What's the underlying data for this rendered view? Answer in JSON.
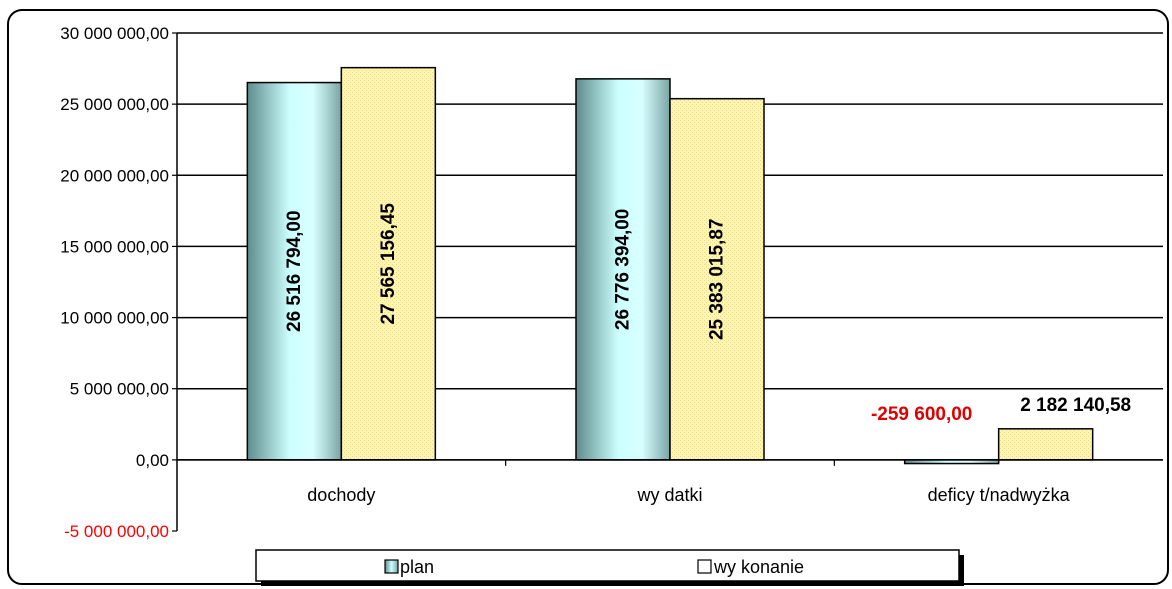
{
  "chart_data": {
    "type": "bar",
    "categories": [
      "dochody",
      "wy datki",
      "deficy t/nadwyżka"
    ],
    "series": [
      {
        "name": "plan",
        "values": [
          26516794.0,
          26776394.0,
          -259600.0
        ],
        "labels": [
          "26 516 794,00",
          "26 776 394,00",
          "-259 600,00"
        ]
      },
      {
        "name": "wy konanie",
        "values": [
          27565156.45,
          25383015.87,
          2182140.58
        ],
        "labels": [
          "27 565 156,45",
          "25 383 015,87",
          "2 182 140,58"
        ]
      }
    ],
    "ylim": [
      -5000000,
      30000000
    ],
    "yticks": [
      {
        "value": 30000000,
        "label": "30 000 000,00"
      },
      {
        "value": 25000000,
        "label": "25 000 000,00"
      },
      {
        "value": 20000000,
        "label": "20 000 000,00"
      },
      {
        "value": 15000000,
        "label": "15 000 000,00"
      },
      {
        "value": 10000000,
        "label": "10 000 000,00"
      },
      {
        "value": 5000000,
        "label": "5 000 000,00"
      },
      {
        "value": 0,
        "label": "0,00"
      },
      {
        "value": -5000000,
        "label": "-5 000 000,00"
      }
    ],
    "grid": true,
    "legend_position": "bottom",
    "colors": {
      "plan_light": "#ccffff",
      "plan_dark": "#6f9999",
      "wykonanie": "#fff2a8",
      "negative_text": "#ff0000"
    }
  }
}
